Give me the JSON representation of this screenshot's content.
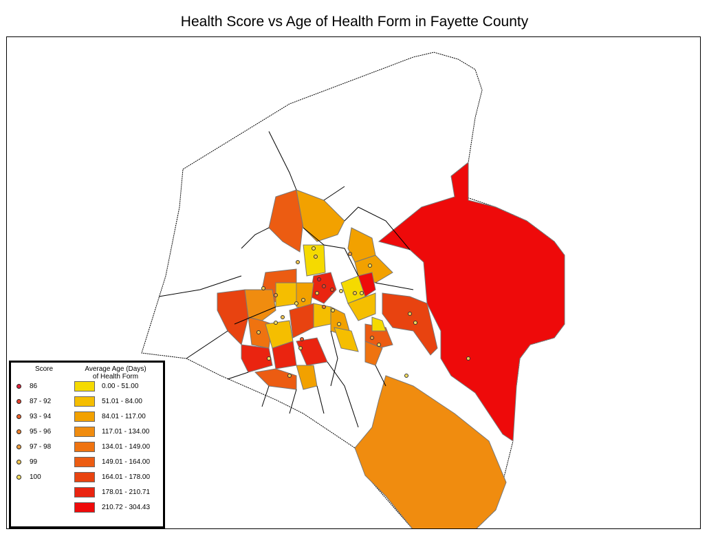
{
  "title": "Health Score vs Age of Health Form in Fayette County",
  "legend": {
    "score_header": "Score",
    "age_header_line1": "Average Age (Days)",
    "age_header_line2": "of Health Form",
    "score_classes": [
      {
        "label": "86",
        "color": "#e0203a"
      },
      {
        "label": "87 - 92",
        "color": "#e8402a"
      },
      {
        "label": "93 - 94",
        "color": "#f0602a"
      },
      {
        "label": "95 - 96",
        "color": "#f0802a"
      },
      {
        "label": "97 - 98",
        "color": "#f0a040"
      },
      {
        "label": "99",
        "color": "#f4c850"
      },
      {
        "label": "100",
        "color": "#f8e060"
      }
    ],
    "age_classes": [
      {
        "label": "0.00 - 51.00",
        "color": "#f5da00"
      },
      {
        "label": "51.01 - 84.00",
        "color": "#f5be00"
      },
      {
        "label": "84.01 - 117.00",
        "color": "#f2a100"
      },
      {
        "label": "117.01 - 134.00",
        "color": "#f08c0f"
      },
      {
        "label": "134.01 - 149.00",
        "color": "#ef7310"
      },
      {
        "label": "149.01 - 164.00",
        "color": "#ec5c12"
      },
      {
        "label": "164.01 - 178.00",
        "color": "#e84310"
      },
      {
        "label": "178.01 - 210.71",
        "color": "#ea2410"
      },
      {
        "label": "210.72 - 304.43",
        "color": "#ee0a0a"
      }
    ]
  }
}
